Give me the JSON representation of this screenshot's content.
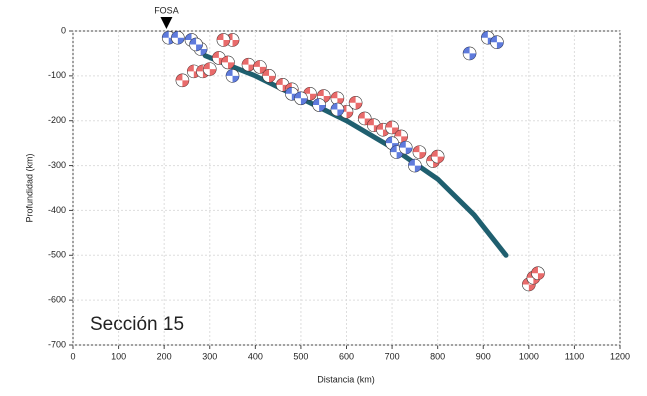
{
  "chart_data": {
    "type": "scatter",
    "xlabel": "Distancia (km)",
    "ylabel": "Profundidad (km)",
    "annotations": [
      "FOSA",
      "Sección 15"
    ],
    "trench_x": 205,
    "xlim": [
      0,
      1200
    ],
    "xticks": [
      0,
      100,
      200,
      300,
      400,
      500,
      600,
      700,
      800,
      900,
      1000,
      1100,
      1200
    ],
    "ylim": [
      -700,
      0
    ],
    "yticks": [
      0,
      -100,
      -200,
      -300,
      -400,
      -500,
      -600,
      -700
    ],
    "grid": true,
    "slab": {
      "color": "#1f5f6f",
      "x": [
        290,
        400,
        500,
        600,
        700,
        800,
        880,
        950
      ],
      "values": [
        -55,
        -100,
        -150,
        -200,
        -260,
        -330,
        -410,
        -500
      ]
    },
    "series": [
      {
        "color": "#e03a3a",
        "x": [
          350,
          330,
          240,
          265,
          285,
          300,
          320,
          340,
          385,
          410,
          430,
          460,
          480,
          520,
          550,
          580,
          600,
          620,
          640,
          660,
          680,
          700,
          720,
          760,
          790,
          800,
          1000,
          1010,
          1020
        ],
        "values": [
          -20,
          -20,
          -110,
          -90,
          -90,
          -85,
          -60,
          -70,
          -75,
          -80,
          -100,
          -120,
          -130,
          -140,
          -145,
          -150,
          -180,
          -160,
          -195,
          -210,
          -220,
          -215,
          -235,
          -270,
          -290,
          -280,
          -565,
          -550,
          -540
        ]
      },
      {
        "color": "#2a4fd0",
        "x": [
          210,
          230,
          260,
          280,
          270,
          350,
          480,
          500,
          540,
          580,
          700,
          710,
          730,
          750,
          870,
          910,
          930
        ],
        "values": [
          -15,
          -15,
          -20,
          -40,
          -30,
          -100,
          -140,
          -150,
          -165,
          -175,
          -250,
          -270,
          -260,
          -300,
          -50,
          -15,
          -25
        ]
      }
    ]
  }
}
